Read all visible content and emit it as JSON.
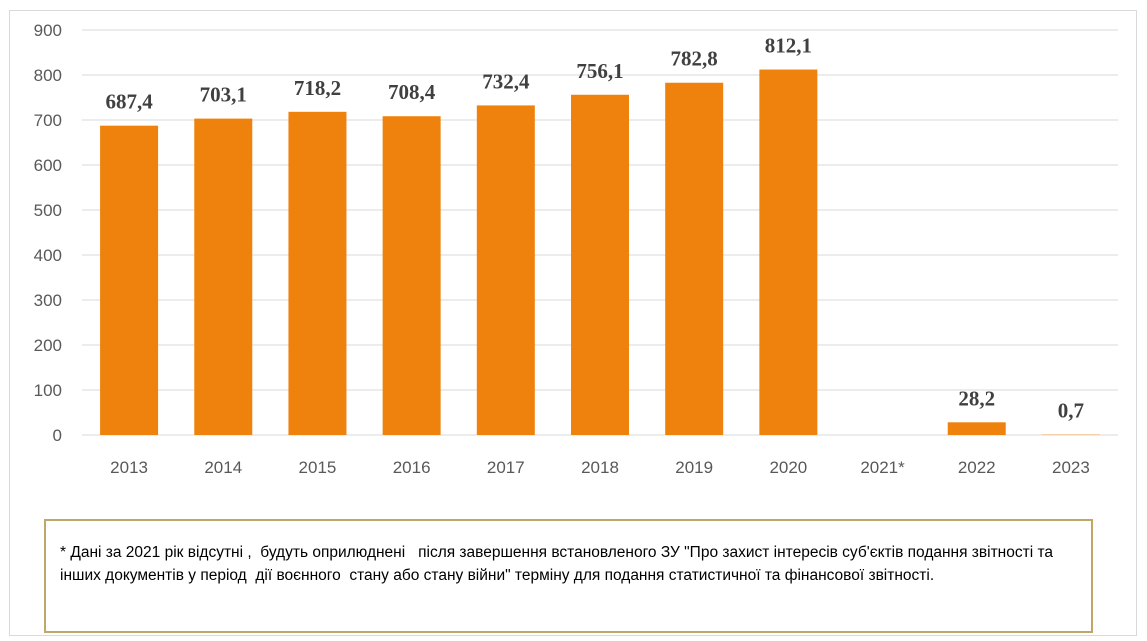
{
  "chart_data": {
    "type": "bar",
    "categories": [
      "2013",
      "2014",
      "2015",
      "2016",
      "2017",
      "2018",
      "2019",
      "2020",
      "2021*",
      "2022",
      "2023"
    ],
    "values": [
      687.4,
      703.1,
      718.2,
      708.4,
      732.4,
      756.1,
      782.8,
      812.1,
      null,
      28.2,
      0.7
    ],
    "data_labels": [
      "687,4",
      "703,1",
      "718,2",
      "708,4",
      "732,4",
      "756,1",
      "782,8",
      "812,1",
      "",
      "28,2",
      "0,7"
    ],
    "y_ticks": [
      0,
      100,
      200,
      300,
      400,
      500,
      600,
      700,
      800,
      900
    ],
    "ylim": [
      0,
      900
    ],
    "title": "",
    "xlabel": "",
    "ylabel": "",
    "grid": true,
    "legend": "none",
    "colors": {
      "bar": "#ee820c",
      "grid": "#d9d9d9",
      "tick_text": "#595959",
      "label_text": "#404040"
    }
  },
  "footnote": "* Дані за 2021 рік відсутні ,  будуть оприлюднені   після завершення встановленого ЗУ \"Про захист інтересів суб'єктів подання звітності та інших документів у період  дії воєнного  стану або стану війни\" терміну для подання статистичної та фінансової звітності."
}
